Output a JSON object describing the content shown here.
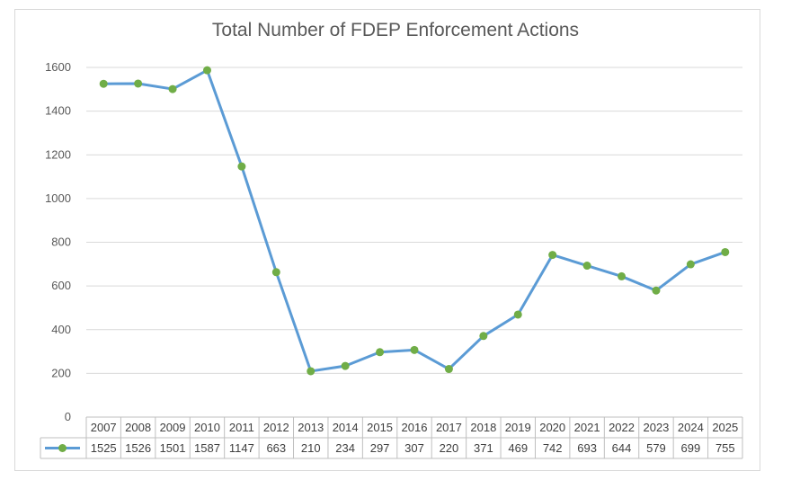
{
  "chart_data": {
    "type": "line",
    "title": "Total Number of FDEP Enforcement Actions",
    "categories": [
      "2007",
      "2008",
      "2009",
      "2010",
      "2011",
      "2012",
      "2013",
      "2014",
      "2015",
      "2016",
      "2017",
      "2018",
      "2019",
      "2020",
      "2021",
      "2022",
      "2023",
      "2024",
      "2025"
    ],
    "series": [
      {
        "values": [
          1525,
          1526,
          1501,
          1587,
          1147,
          663,
          210,
          234,
          297,
          307,
          220,
          371,
          469,
          742,
          693,
          644,
          579,
          699,
          755
        ],
        "line_color": "#5B9BD5",
        "marker_color": "#70AD47"
      }
    ],
    "ylim": [
      0,
      1600
    ],
    "yticks": [
      0,
      200,
      400,
      600,
      800,
      1000,
      1200,
      1400,
      1600
    ],
    "grid": true,
    "legend": "data-table",
    "data_table": true
  }
}
